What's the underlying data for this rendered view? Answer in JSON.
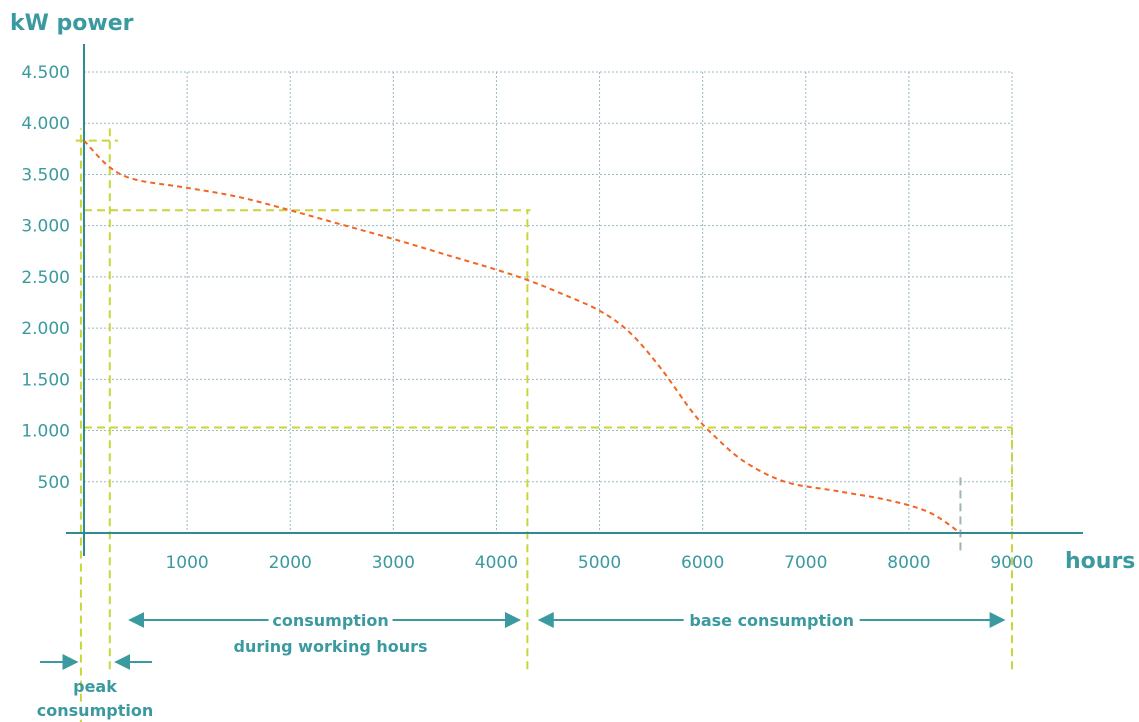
{
  "chart_data": {
    "type": "line",
    "ylabel": "kW power",
    "xlabel": "hours",
    "xlim": [
      0,
      9000
    ],
    "ylim": [
      0,
      4500
    ],
    "x_ticks": [
      1000,
      2000,
      3000,
      4000,
      5000,
      6000,
      7000,
      8000,
      9000
    ],
    "x_tick_labels": [
      "1000",
      "2000",
      "3000",
      "4000",
      "5000",
      "6000",
      "7000",
      "8000",
      "9000"
    ],
    "y_ticks": [
      500,
      1000,
      1500,
      2000,
      2500,
      3000,
      3500,
      4000,
      4500
    ],
    "y_tick_labels": [
      "500",
      "1.000",
      "1.500",
      "2.000",
      "2.500",
      "3.000",
      "3.500",
      "4.000",
      "4.500"
    ],
    "grid": true,
    "series": [
      {
        "name": "",
        "color": "#f26522",
        "style": "dashed",
        "x": [
          0,
          250,
          500,
          1000,
          1500,
          2000,
          2500,
          3000,
          3500,
          4000,
          4300,
          4600,
          5000,
          5300,
          5600,
          5900,
          6100,
          6400,
          6800,
          7300,
          7800,
          8200,
          8500
        ],
        "y": [
          3830,
          3570,
          3450,
          3370,
          3280,
          3150,
          3010,
          2870,
          2720,
          2570,
          2470,
          2350,
          2170,
          1950,
          1600,
          1180,
          960,
          700,
          500,
          410,
          320,
          200,
          0
        ]
      }
    ],
    "reference_lines": {
      "color": "#c8d63a",
      "horizontal": [
        {
          "y": 3830,
          "x_from": -80,
          "x_to": 330
        },
        {
          "y": 3150,
          "x_from": 0,
          "x_to": 4330
        },
        {
          "y": 1030,
          "x_from": 0,
          "x_to": 9000
        }
      ],
      "vertical": [
        {
          "x": -30,
          "y_from": -1900,
          "y_to": 3950
        },
        {
          "x": 250,
          "y_from": -1330,
          "y_to": 3950
        },
        {
          "x": 4300,
          "y_from": -1330,
          "y_to": 3150
        },
        {
          "x": 9000,
          "y_from": -1330,
          "y_to": 1030
        }
      ]
    },
    "end_marker": {
      "x": 8500,
      "y_from": -170,
      "y_to": 590,
      "color": "#a0b3b8"
    },
    "annotations": [
      {
        "label_lines": [
          "consumption",
          "during working hours"
        ],
        "from": 250,
        "to": 4300
      },
      {
        "label_lines": [
          "base consumption"
        ],
        "from": 4300,
        "to": 9000
      },
      {
        "label_lines": [
          "peak",
          "consumption"
        ],
        "from": -30,
        "to": 250,
        "outside": true
      }
    ]
  }
}
